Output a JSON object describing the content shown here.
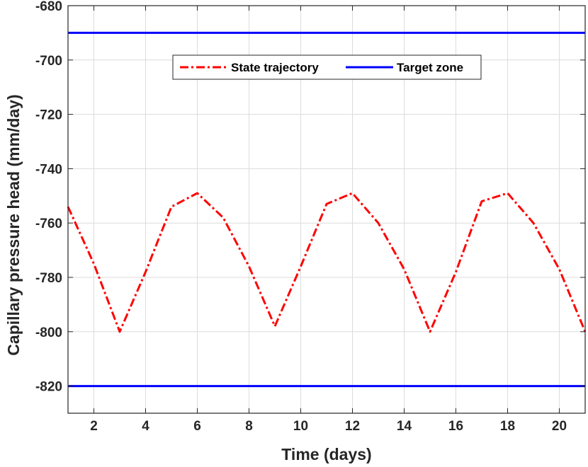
{
  "chart_data": {
    "type": "line",
    "xlabel": "Time (days)",
    "ylabel": "Capillary pressure head (mm/day)",
    "xlim": [
      1,
      21
    ],
    "ylim": [
      -830,
      -680
    ],
    "xticks": [
      2,
      4,
      6,
      8,
      10,
      12,
      14,
      16,
      18,
      20
    ],
    "yticks": [
      -680,
      -700,
      -720,
      -740,
      -760,
      -780,
      -800,
      -820
    ],
    "grid": true,
    "legend_position": "top-center",
    "series": [
      {
        "name": "State trajectory",
        "color": "#ff0000",
        "style": "dash-dot",
        "x": [
          1,
          2,
          3,
          4,
          5,
          6,
          7,
          8,
          9,
          10,
          11,
          12,
          13,
          14,
          15,
          16,
          17,
          18,
          19,
          20,
          21
        ],
        "y": [
          -754,
          -775,
          -800,
          -778,
          -754,
          -749,
          -758,
          -776,
          -798,
          -776,
          -753,
          -749,
          -760,
          -777,
          -800,
          -778,
          -752,
          -749,
          -760,
          -777,
          -800
        ]
      },
      {
        "name": "Target zone",
        "color": "#0000ff",
        "style": "solid",
        "x": [
          1,
          21
        ],
        "y_lines": [
          -690,
          -820
        ]
      }
    ]
  }
}
